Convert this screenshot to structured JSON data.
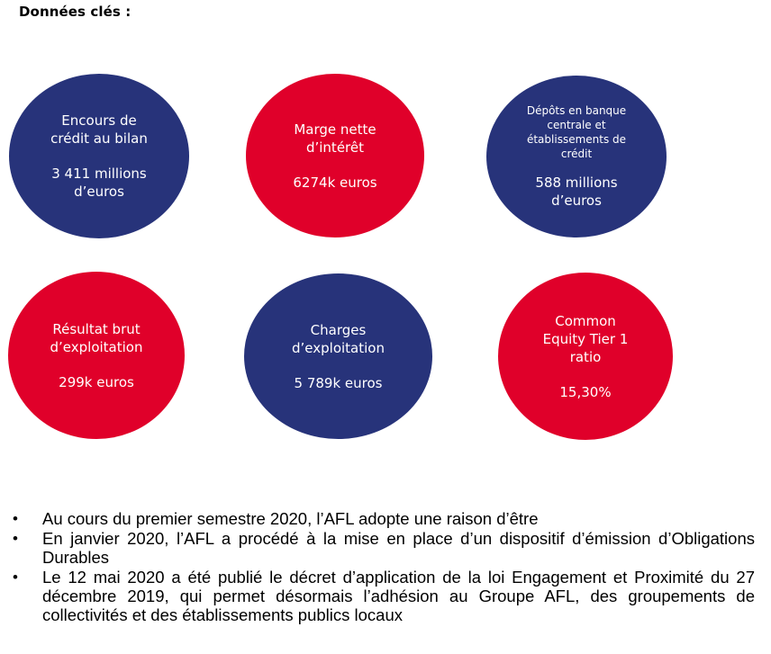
{
  "heading": "Données clés :",
  "circles": [
    {
      "label": "Encours de\ncrédit au bilan",
      "value": "3 411 millions\nd’euros",
      "color": "#27337a"
    },
    {
      "label": "Marge nette\nd’intérêt",
      "value": "6274k euros",
      "color": "#e0002a"
    },
    {
      "label": "Dépôts en banque\ncentrale et\nétablissements de\ncrédit",
      "value": "588 millions\nd’euros",
      "color": "#27337a"
    },
    {
      "label": "Résultat brut\nd’exploitation",
      "value": "299k euros",
      "color": "#e0002a"
    },
    {
      "label": "Charges\nd’exploitation",
      "value": "5 789k euros",
      "color": "#27337a"
    },
    {
      "label": "Common\nEquity Tier 1\nratio",
      "value": "15,30%",
      "color": "#e0002a"
    }
  ],
  "bullet_symbol": "•",
  "bullets": [
    "Au cours du premier semestre 2020, l’AFL adopte une raison d’être",
    "En janvier 2020, l’AFL a procédé à la mise en place d’un dispositif d’émission d’Obligations Durables",
    "Le 12 mai 2020 a été publié le décret d’application de la loi Engagement et Proximité du 27 décembre 2019, qui permet désormais l’adhésion au Groupe AFL, des groupements de collectivités et des établissements publics locaux"
  ]
}
